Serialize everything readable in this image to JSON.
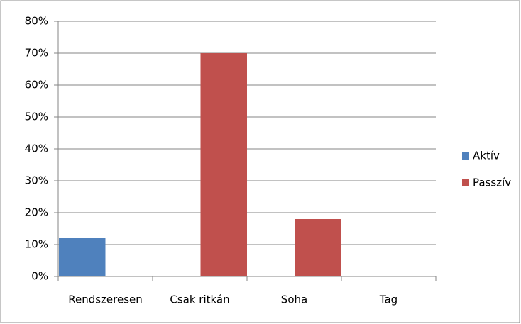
{
  "chart_data": {
    "type": "bar",
    "categories": [
      "Rendszeresen",
      "Csak ritkán",
      "Soha",
      "Tag"
    ],
    "series": [
      {
        "name": "Aktív",
        "color": "#4f81bd",
        "values": [
          12,
          0,
          0,
          0
        ]
      },
      {
        "name": "Passzív",
        "color": "#c0504d",
        "values": [
          0,
          70,
          18,
          0
        ]
      }
    ],
    "ylim": [
      0,
      80
    ],
    "yticks": [
      {
        "value": 0,
        "label": "0%"
      },
      {
        "value": 10,
        "label": "10%"
      },
      {
        "value": 20,
        "label": "20%"
      },
      {
        "value": 30,
        "label": "30%"
      },
      {
        "value": 40,
        "label": "40%"
      },
      {
        "value": 50,
        "label": "50%"
      },
      {
        "value": 60,
        "label": "60%"
      },
      {
        "value": 70,
        "label": "70%"
      },
      {
        "value": 80,
        "label": "80%"
      }
    ],
    "grid": true,
    "legend": "right"
  }
}
